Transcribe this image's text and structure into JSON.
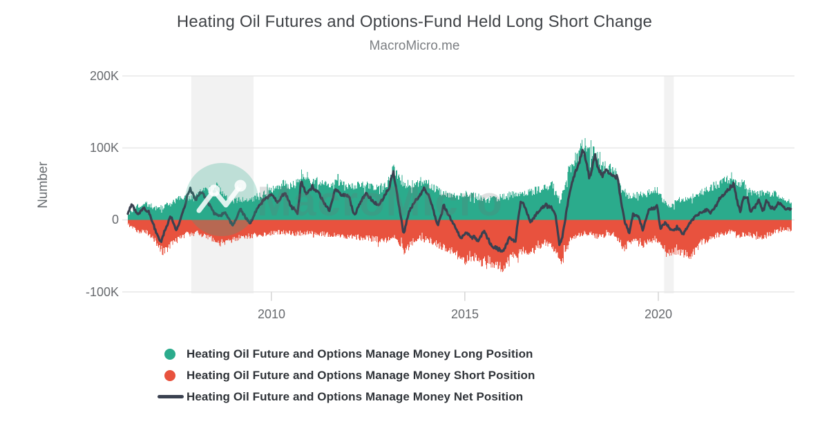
{
  "header": {
    "title": "Heating Oil Futures and Options-Fund Held Long Short Change",
    "subtitle": "MacroMicro.me"
  },
  "watermark": {
    "text": "MacroMicro",
    "logo_icon": "line-chart-logo"
  },
  "chart_data": {
    "type": "area",
    "title": "Heating Oil Futures and Options-Fund Held Long Short Change",
    "subtitle": "MacroMicro.me",
    "xlabel": "",
    "ylabel": "Number",
    "unit": "thousands (K)",
    "grid": "horizontal",
    "legend_position": "bottom-left",
    "colors": {
      "long_area": "#2BAB8C",
      "short_area": "#E8523E",
      "net_line": "#3A4150",
      "gridline": "#E7E7E7",
      "recession_band": "#F2F2F2",
      "tick_text": "#66696d"
    },
    "y_axis": {
      "range_k": [
        -100,
        200
      ],
      "ticks": [
        {
          "label": "200K",
          "value": 200
        },
        {
          "label": "100K",
          "value": 100
        },
        {
          "label": "0",
          "value": 0
        },
        {
          "label": "-100K",
          "value": -100
        }
      ]
    },
    "x_axis": {
      "range": [
        2006.29,
        2023.43
      ],
      "ticks": [
        {
          "label": "2010",
          "value": 2010
        },
        {
          "label": "2015",
          "value": 2015
        },
        {
          "label": "2020",
          "value": 2020
        }
      ]
    },
    "recession_bands": [
      {
        "from": 2007.93,
        "to": 2009.54
      },
      {
        "from": 2020.15,
        "to": 2020.4
      }
    ],
    "series": [
      {
        "name": "Heating Oil Future and Options Manage Money Long Position",
        "type": "area",
        "color": "#2BAB8C",
        "unit": "K",
        "points": [
          [
            2006.29,
            8
          ],
          [
            2006.45,
            16
          ],
          [
            2006.6,
            20
          ],
          [
            2006.8,
            22
          ],
          [
            2007.0,
            16
          ],
          [
            2007.2,
            18
          ],
          [
            2007.45,
            24
          ],
          [
            2007.6,
            33
          ],
          [
            2007.8,
            30
          ],
          [
            2008.0,
            30
          ],
          [
            2008.2,
            42
          ],
          [
            2008.45,
            36
          ],
          [
            2008.6,
            44
          ],
          [
            2008.8,
            32
          ],
          [
            2009.0,
            26
          ],
          [
            2009.2,
            29
          ],
          [
            2009.5,
            30
          ],
          [
            2009.75,
            34
          ],
          [
            2010.0,
            42
          ],
          [
            2010.3,
            50
          ],
          [
            2010.6,
            48
          ],
          [
            2010.77,
            58
          ],
          [
            2011.0,
            52
          ],
          [
            2011.3,
            54
          ],
          [
            2011.5,
            49
          ],
          [
            2011.8,
            51
          ],
          [
            2012.1,
            46
          ],
          [
            2012.35,
            49
          ],
          [
            2012.6,
            47
          ],
          [
            2012.8,
            44
          ],
          [
            2013.0,
            52
          ],
          [
            2013.15,
            72
          ],
          [
            2013.35,
            54
          ],
          [
            2013.55,
            43
          ],
          [
            2013.7,
            50
          ],
          [
            2013.95,
            55
          ],
          [
            2014.2,
            44
          ],
          [
            2014.45,
            37
          ],
          [
            2014.75,
            32
          ],
          [
            2015.05,
            36
          ],
          [
            2015.3,
            33
          ],
          [
            2015.5,
            27
          ],
          [
            2015.8,
            30
          ],
          [
            2016.0,
            33
          ],
          [
            2016.3,
            36
          ],
          [
            2016.6,
            37
          ],
          [
            2016.9,
            42
          ],
          [
            2017.1,
            46
          ],
          [
            2017.3,
            49
          ],
          [
            2017.45,
            25
          ],
          [
            2017.6,
            50
          ],
          [
            2017.75,
            78
          ],
          [
            2017.9,
            88
          ],
          [
            2018.05,
            110
          ],
          [
            2018.2,
            93
          ],
          [
            2018.35,
            95
          ],
          [
            2018.5,
            75
          ],
          [
            2018.7,
            72
          ],
          [
            2018.9,
            65
          ],
          [
            2019.05,
            40
          ],
          [
            2019.2,
            33
          ],
          [
            2019.4,
            34
          ],
          [
            2019.6,
            37
          ],
          [
            2019.8,
            40
          ],
          [
            2019.97,
            42
          ],
          [
            2020.1,
            28
          ],
          [
            2020.3,
            18
          ],
          [
            2020.5,
            27
          ],
          [
            2020.7,
            30
          ],
          [
            2020.9,
            33
          ],
          [
            2021.1,
            38
          ],
          [
            2021.3,
            43
          ],
          [
            2021.5,
            49
          ],
          [
            2021.7,
            54
          ],
          [
            2021.9,
            60
          ],
          [
            2022.05,
            49
          ],
          [
            2022.2,
            51
          ],
          [
            2022.4,
            38
          ],
          [
            2022.6,
            36
          ],
          [
            2022.8,
            38
          ],
          [
            2023.0,
            36
          ],
          [
            2023.2,
            30
          ],
          [
            2023.43,
            26
          ]
        ]
      },
      {
        "name": "Heating Oil Future and Options Manage Money Short Position",
        "type": "area",
        "color": "#E8523E",
        "unit": "K",
        "points": [
          [
            2006.29,
            -6
          ],
          [
            2006.5,
            -14
          ],
          [
            2006.8,
            -18
          ],
          [
            2007.0,
            -30
          ],
          [
            2007.2,
            -45
          ],
          [
            2007.5,
            -30
          ],
          [
            2007.8,
            -20
          ],
          [
            2008.1,
            -18
          ],
          [
            2008.4,
            -25
          ],
          [
            2008.7,
            -32
          ],
          [
            2009.1,
            -25
          ],
          [
            2009.4,
            -22
          ],
          [
            2009.8,
            -20
          ],
          [
            2010.2,
            -17
          ],
          [
            2010.6,
            -19
          ],
          [
            2011.0,
            -18
          ],
          [
            2011.4,
            -20
          ],
          [
            2011.8,
            -22
          ],
          [
            2012.2,
            -24
          ],
          [
            2012.6,
            -26
          ],
          [
            2012.9,
            -29
          ],
          [
            2013.2,
            -24
          ],
          [
            2013.45,
            -44
          ],
          [
            2013.7,
            -27
          ],
          [
            2014.0,
            -26
          ],
          [
            2014.4,
            -37
          ],
          [
            2014.7,
            -43
          ],
          [
            2015.0,
            -58
          ],
          [
            2015.2,
            -50
          ],
          [
            2015.4,
            -59
          ],
          [
            2015.6,
            -56
          ],
          [
            2015.8,
            -65
          ],
          [
            2016.0,
            -66
          ],
          [
            2016.2,
            -51
          ],
          [
            2016.5,
            -42
          ],
          [
            2016.7,
            -46
          ],
          [
            2016.9,
            -37
          ],
          [
            2017.1,
            -31
          ],
          [
            2017.3,
            -40
          ],
          [
            2017.45,
            -60
          ],
          [
            2017.7,
            -31
          ],
          [
            2017.9,
            -21
          ],
          [
            2018.1,
            -18
          ],
          [
            2018.3,
            -21
          ],
          [
            2018.5,
            -24
          ],
          [
            2018.7,
            -19
          ],
          [
            2018.9,
            -21
          ],
          [
            2019.1,
            -40
          ],
          [
            2019.25,
            -31
          ],
          [
            2019.4,
            -27
          ],
          [
            2019.6,
            -34
          ],
          [
            2019.8,
            -27
          ],
          [
            2020.0,
            -31
          ],
          [
            2020.2,
            -48
          ],
          [
            2020.35,
            -43
          ],
          [
            2020.55,
            -46
          ],
          [
            2020.85,
            -50
          ],
          [
            2021.1,
            -31
          ],
          [
            2021.3,
            -27
          ],
          [
            2021.5,
            -21
          ],
          [
            2021.7,
            -18
          ],
          [
            2021.9,
            -15
          ],
          [
            2022.1,
            -21
          ],
          [
            2022.3,
            -19
          ],
          [
            2022.5,
            -23
          ],
          [
            2022.7,
            -26
          ],
          [
            2022.9,
            -19
          ],
          [
            2023.1,
            -15
          ],
          [
            2023.3,
            -13
          ],
          [
            2023.43,
            -14
          ]
        ]
      },
      {
        "name": "Heating Oil Future and Options Manage Money Net Position",
        "type": "line",
        "color": "#3A4150",
        "unit": "K",
        "points": [
          [
            2006.29,
            10
          ],
          [
            2006.4,
            22
          ],
          [
            2006.55,
            6
          ],
          [
            2006.7,
            18
          ],
          [
            2006.85,
            8
          ],
          [
            2007.05,
            -22
          ],
          [
            2007.15,
            -30
          ],
          [
            2007.3,
            -8
          ],
          [
            2007.4,
            5
          ],
          [
            2007.55,
            -15
          ],
          [
            2007.7,
            8
          ],
          [
            2007.9,
            44
          ],
          [
            2008.05,
            28
          ],
          [
            2008.2,
            40
          ],
          [
            2008.35,
            25
          ],
          [
            2008.5,
            12
          ],
          [
            2008.65,
            5
          ],
          [
            2008.8,
            10
          ],
          [
            2009.0,
            -8
          ],
          [
            2009.2,
            15
          ],
          [
            2009.35,
            2
          ],
          [
            2009.45,
            -5
          ],
          [
            2009.6,
            12
          ],
          [
            2009.8,
            28
          ],
          [
            2010.0,
            36
          ],
          [
            2010.15,
            25
          ],
          [
            2010.35,
            38
          ],
          [
            2010.5,
            20
          ],
          [
            2010.68,
            9
          ],
          [
            2010.77,
            54
          ],
          [
            2010.9,
            35
          ],
          [
            2011.05,
            45
          ],
          [
            2011.2,
            39
          ],
          [
            2011.35,
            25
          ],
          [
            2011.5,
            12
          ],
          [
            2011.65,
            42
          ],
          [
            2011.8,
            35
          ],
          [
            2012.0,
            33
          ],
          [
            2012.15,
            5
          ],
          [
            2012.3,
            25
          ],
          [
            2012.45,
            36
          ],
          [
            2012.6,
            28
          ],
          [
            2012.75,
            20
          ],
          [
            2012.9,
            30
          ],
          [
            2013.05,
            45
          ],
          [
            2013.15,
            68
          ],
          [
            2013.3,
            20
          ],
          [
            2013.42,
            -20
          ],
          [
            2013.55,
            10
          ],
          [
            2013.7,
            25
          ],
          [
            2013.85,
            35
          ],
          [
            2013.95,
            45
          ],
          [
            2014.1,
            30
          ],
          [
            2014.3,
            -8
          ],
          [
            2014.45,
            20
          ],
          [
            2014.6,
            5
          ],
          [
            2014.75,
            -10
          ],
          [
            2014.9,
            -25
          ],
          [
            2015.05,
            -18
          ],
          [
            2015.2,
            -25
          ],
          [
            2015.35,
            -28
          ],
          [
            2015.5,
            -15
          ],
          [
            2015.65,
            -34
          ],
          [
            2015.85,
            -40
          ],
          [
            2016.0,
            -44
          ],
          [
            2016.15,
            -25
          ],
          [
            2016.3,
            -30
          ],
          [
            2016.45,
            27
          ],
          [
            2016.55,
            18
          ],
          [
            2016.7,
            -3
          ],
          [
            2016.85,
            8
          ],
          [
            2016.95,
            15
          ],
          [
            2017.1,
            21
          ],
          [
            2017.25,
            17
          ],
          [
            2017.35,
            5
          ],
          [
            2017.45,
            -36
          ],
          [
            2017.55,
            -15
          ],
          [
            2017.65,
            20
          ],
          [
            2017.75,
            48
          ],
          [
            2017.85,
            65
          ],
          [
            2017.95,
            80
          ],
          [
            2018.05,
            98
          ],
          [
            2018.15,
            80
          ],
          [
            2018.22,
            57
          ],
          [
            2018.3,
            75
          ],
          [
            2018.37,
            90
          ],
          [
            2018.45,
            70
          ],
          [
            2018.55,
            63
          ],
          [
            2018.65,
            70
          ],
          [
            2018.8,
            62
          ],
          [
            2018.95,
            58
          ],
          [
            2019.05,
            20
          ],
          [
            2019.15,
            -5
          ],
          [
            2019.25,
            -18
          ],
          [
            2019.35,
            8
          ],
          [
            2019.5,
            4
          ],
          [
            2019.6,
            -15
          ],
          [
            2019.75,
            14
          ],
          [
            2019.9,
            17
          ],
          [
            2019.97,
            22
          ],
          [
            2020.05,
            -11
          ],
          [
            2020.2,
            -5
          ],
          [
            2020.35,
            -15
          ],
          [
            2020.5,
            -11
          ],
          [
            2020.65,
            -19
          ],
          [
            2020.8,
            -5
          ],
          [
            2020.95,
            4
          ],
          [
            2021.1,
            11
          ],
          [
            2021.25,
            14
          ],
          [
            2021.35,
            10
          ],
          [
            2021.45,
            17
          ],
          [
            2021.55,
            27
          ],
          [
            2021.7,
            36
          ],
          [
            2021.85,
            44
          ],
          [
            2021.95,
            50
          ],
          [
            2022.05,
            23
          ],
          [
            2022.12,
            12
          ],
          [
            2022.2,
            30
          ],
          [
            2022.3,
            33
          ],
          [
            2022.38,
            11
          ],
          [
            2022.5,
            18
          ],
          [
            2022.6,
            27
          ],
          [
            2022.7,
            12
          ],
          [
            2022.8,
            28
          ],
          [
            2022.9,
            17
          ],
          [
            2023.0,
            16
          ],
          [
            2023.1,
            24
          ],
          [
            2023.2,
            20
          ],
          [
            2023.3,
            14
          ],
          [
            2023.43,
            16
          ]
        ]
      }
    ]
  }
}
